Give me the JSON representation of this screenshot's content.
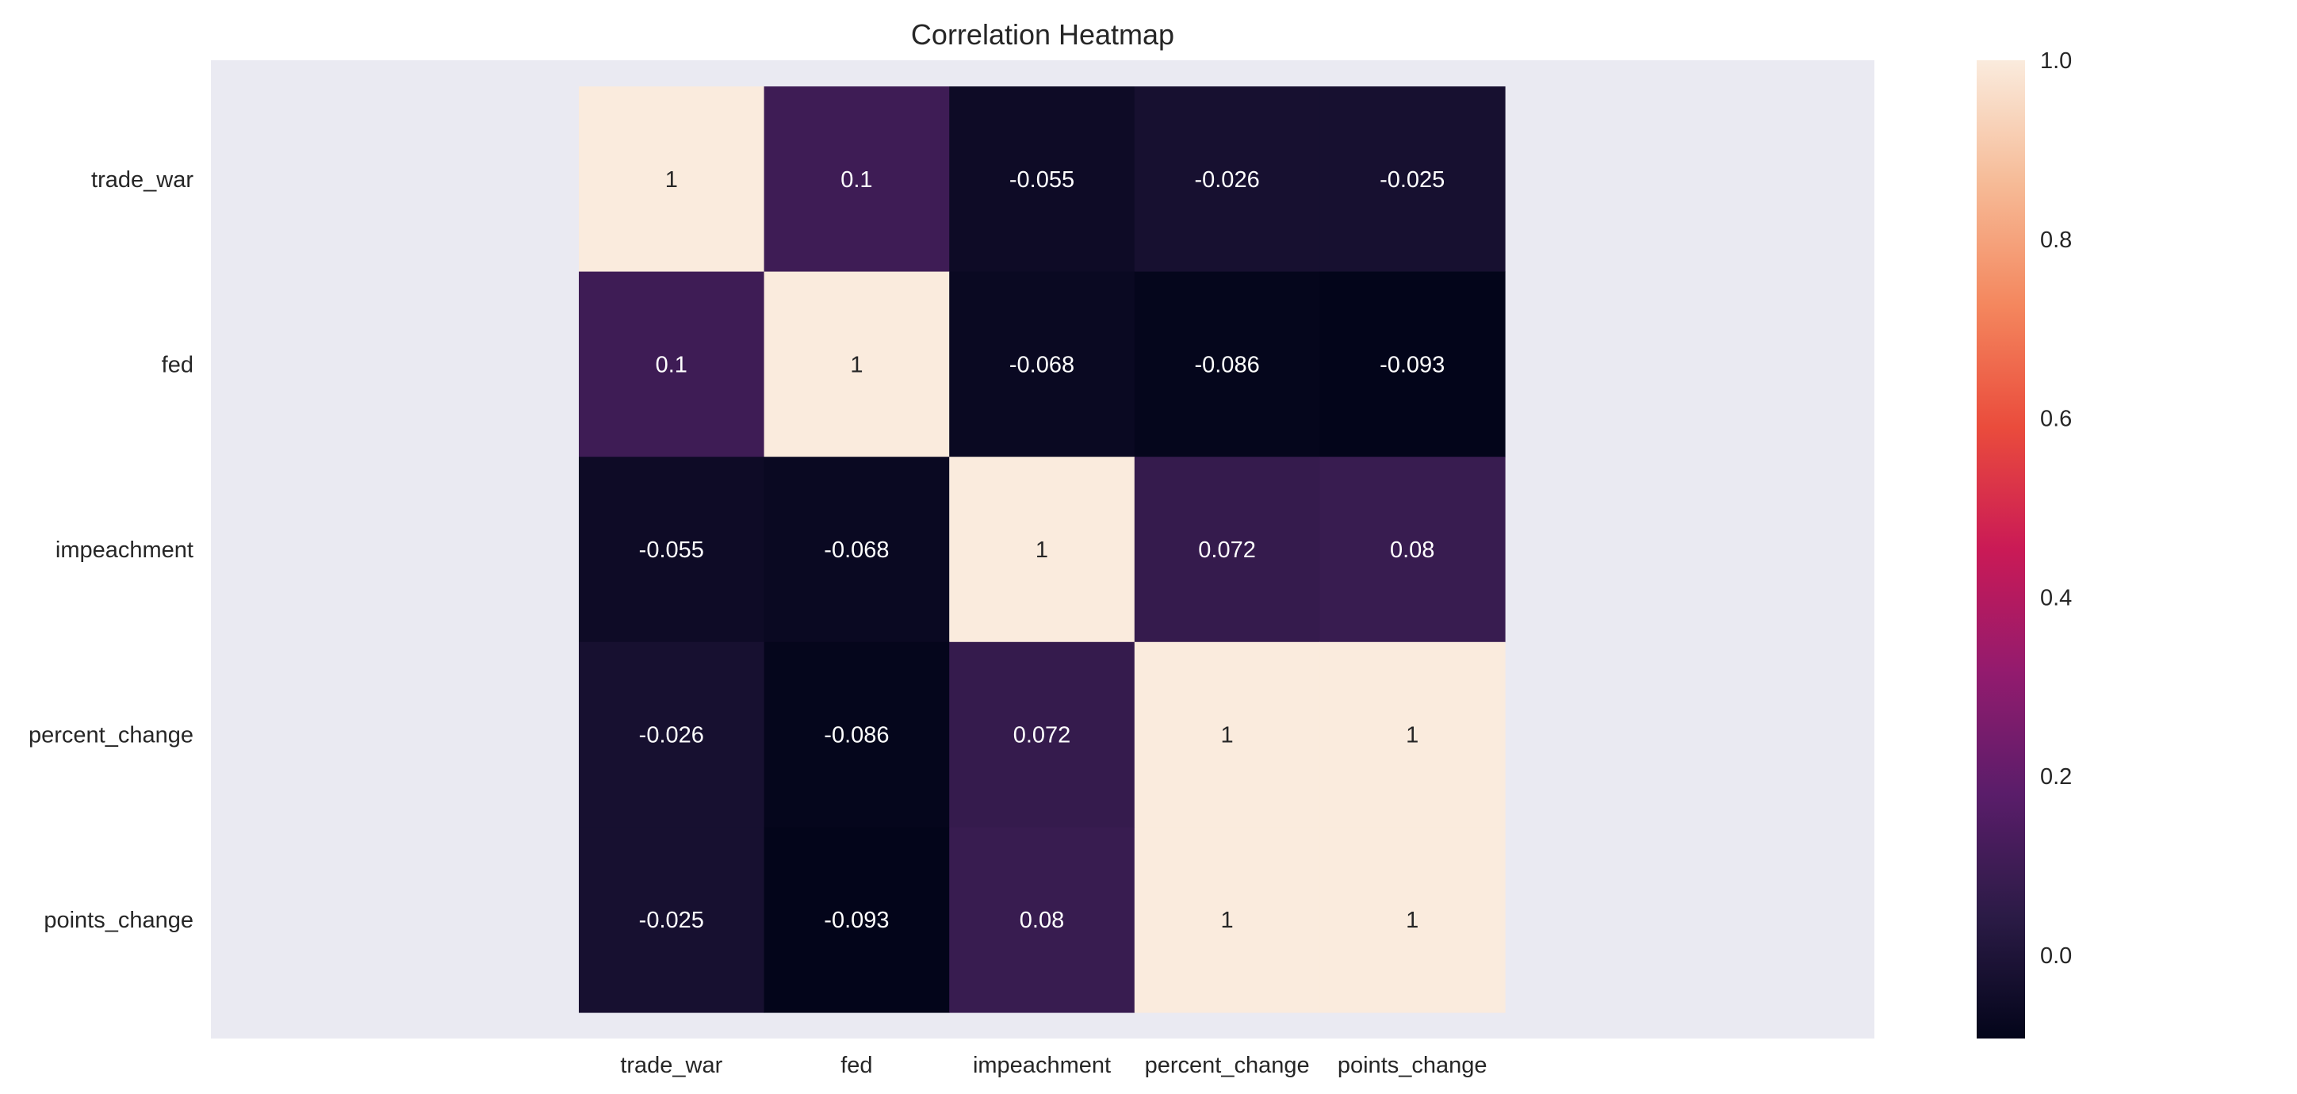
{
  "chart_data": {
    "type": "heatmap",
    "title": "Correlation Heatmap",
    "x_labels": [
      "trade_war",
      "fed",
      "impeachment",
      "percent_change",
      "points_change"
    ],
    "y_labels": [
      "trade_war",
      "fed",
      "impeachment",
      "percent_change",
      "points_change"
    ],
    "values": [
      [
        1,
        0.1,
        -0.055,
        -0.026,
        -0.025
      ],
      [
        0.1,
        1,
        -0.068,
        -0.086,
        -0.093
      ],
      [
        -0.055,
        -0.068,
        1,
        0.072,
        0.08
      ],
      [
        -0.026,
        -0.086,
        0.072,
        1,
        1
      ],
      [
        -0.025,
        -0.093,
        0.08,
        1,
        1
      ]
    ],
    "cell_text": [
      [
        "1",
        "0.1",
        "-0.055",
        "-0.026",
        "-0.025"
      ],
      [
        "0.1",
        "1",
        "-0.068",
        "-0.086",
        "-0.093"
      ],
      [
        "-0.055",
        "-0.068",
        "1",
        "0.072",
        "0.08"
      ],
      [
        "-0.026",
        "-0.086",
        "0.072",
        "1",
        "1"
      ],
      [
        "-0.025",
        "-0.093",
        "0.08",
        "1",
        "1"
      ]
    ],
    "colorbar": {
      "colormap": "rocket",
      "vmin": -0.093,
      "vmax": 1.0,
      "ticks": [
        0.0,
        0.2,
        0.4,
        0.6,
        0.8,
        1.0
      ],
      "tick_labels": [
        "0.0",
        "0.2",
        "0.4",
        "0.6",
        "0.8",
        "1.0"
      ]
    },
    "axes_facecolor": "#eaeaf2",
    "grid": false
  }
}
